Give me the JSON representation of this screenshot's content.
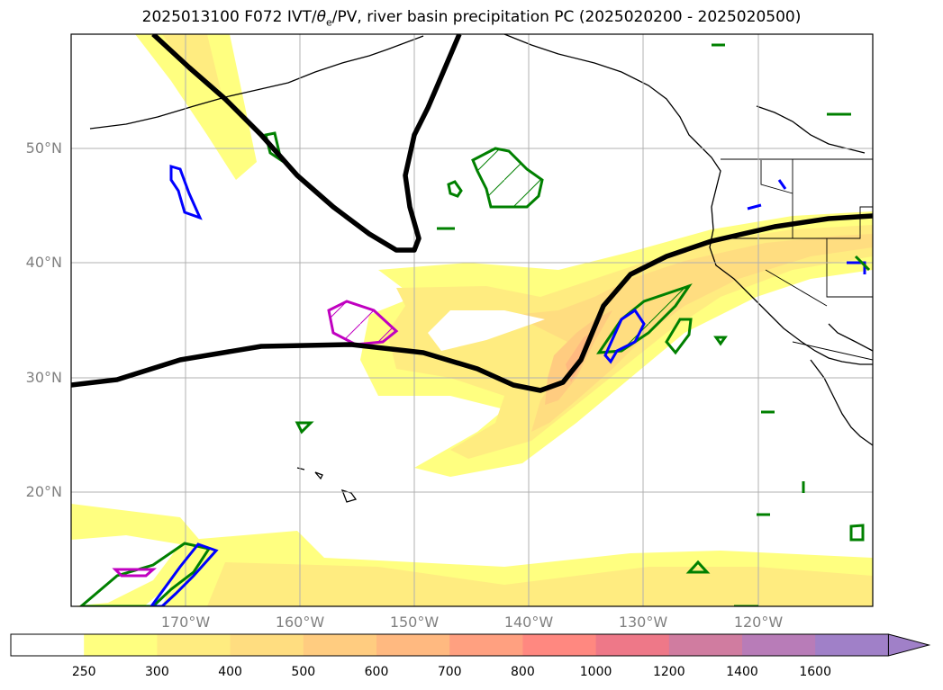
{
  "title": {
    "prefix": "2025013100 F072 IVT/",
    "theta": "θ",
    "sub": "e",
    "suffix": "/PV, river basin precipitation PC (2025020200 - 2025020500)"
  },
  "map": {
    "lon_range": [
      "180°",
      "110°W"
    ],
    "lat_range": [
      "10°N",
      "60°N"
    ],
    "lat_labels": [
      "50°N",
      "40°N",
      "30°N",
      "20°N"
    ],
    "lon_labels": [
      "170°W",
      "160°W",
      "150°W",
      "140°W",
      "130°W",
      "120°W"
    ],
    "colors": {
      "pv_contour": "#000000",
      "precip_green": "#008000",
      "precip_blue": "#0000ff",
      "precip_magenta": "#c000c0",
      "gridline": "#b0b0b0",
      "coastline": "#000000"
    }
  },
  "colorbar": {
    "labels": [
      "250",
      "300",
      "400",
      "500",
      "600",
      "700",
      "800",
      "1000",
      "1200",
      "1400",
      "1600"
    ],
    "colors": [
      "#ffffff",
      "#ffff80",
      "#ffec80",
      "#ffdd80",
      "#ffcc80",
      "#ffb980",
      "#ffa080",
      "#ff8880",
      "#ee7888",
      "#d07ca0",
      "#b87cb8",
      "#a080c8"
    ],
    "extend": "max"
  }
}
